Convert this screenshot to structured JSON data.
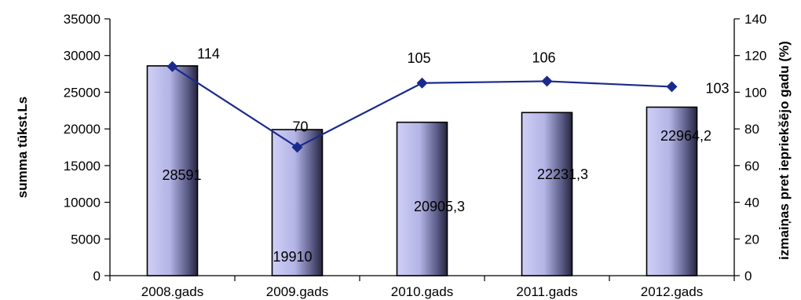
{
  "chart_data": {
    "type": "bar",
    "categories": [
      "2008.gads",
      "2009.gads",
      "2010.gads",
      "2011.gads",
      "2012.gads"
    ],
    "bar_series": {
      "values": [
        28591,
        19910,
        20905.3,
        22231.3,
        22964.2
      ],
      "labels": [
        "28591",
        "19910",
        "20905,3",
        "22231,3",
        "22964,2"
      ],
      "color": "#b8b8ea"
    },
    "line_series": {
      "values": [
        114,
        70,
        105,
        106,
        103
      ],
      "labels": [
        "114",
        "70",
        "105",
        "106",
        "103"
      ],
      "color": "#1a2a8c"
    },
    "y_left": {
      "label": "summa tūkst.Ls",
      "ylim": [
        0,
        35000
      ],
      "ticks": [
        "0",
        "5000",
        "10000",
        "15000",
        "20000",
        "25000",
        "30000",
        "35000"
      ]
    },
    "y_right": {
      "label": "izmaiņas pret iepriekšējo gadu (%)",
      "ylim": [
        0,
        140
      ],
      "ticks": [
        "0",
        "20",
        "40",
        "60",
        "80",
        "100",
        "120",
        "140"
      ]
    },
    "grid": false,
    "legend": "none"
  }
}
